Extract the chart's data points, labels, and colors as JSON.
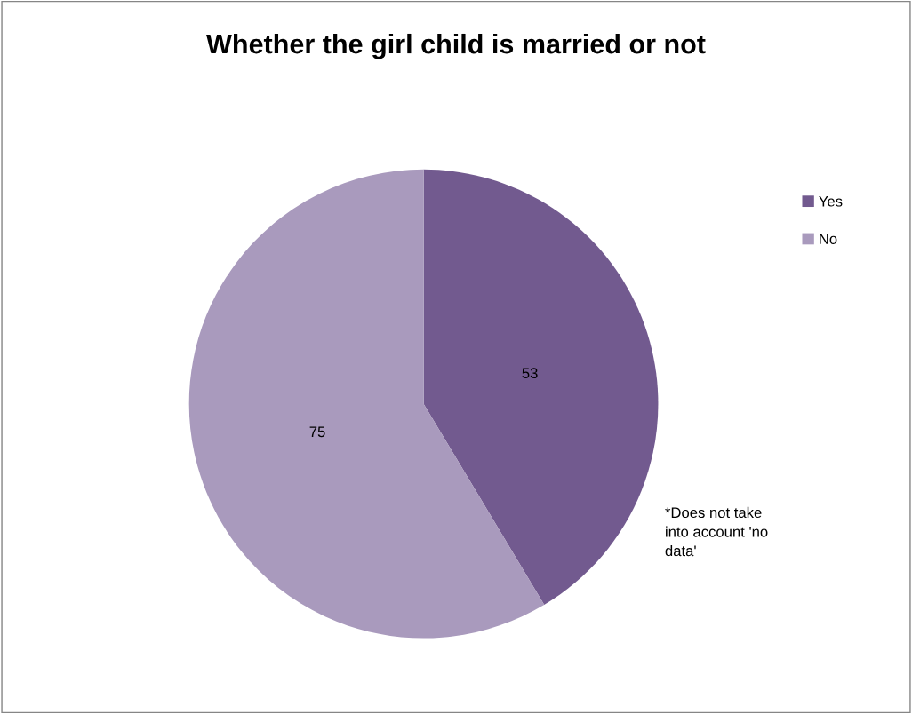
{
  "chart_data": {
    "type": "pie",
    "title": "Whether the girl child is married or not",
    "categories": [
      "Yes",
      "No"
    ],
    "values": [
      53,
      75
    ],
    "colors": [
      "#725a8f",
      "#a99abd"
    ],
    "data_labels": true,
    "legend": "right",
    "annotations": [
      "*Does not take\ninto account 'no\ndata'"
    ]
  }
}
